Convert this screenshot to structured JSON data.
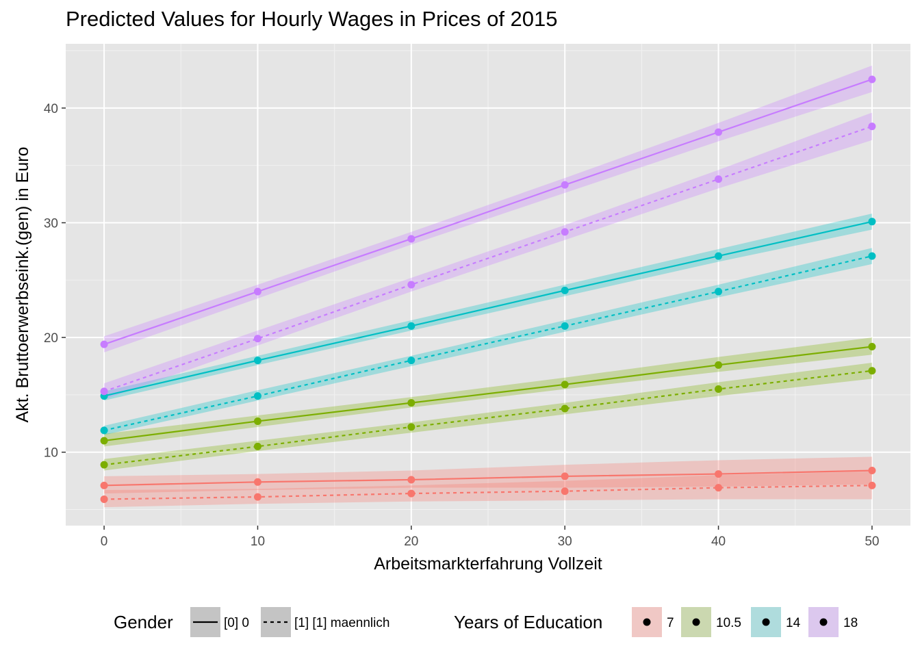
{
  "chart_data": {
    "type": "line",
    "title": "Predicted Values for Hourly Wages in Prices of 2015",
    "xlabel": "Arbeitsmarkterfahrung Vollzeit",
    "ylabel": "Akt. Bruttoerwerbseink.(gen) in Euro",
    "xlim": [
      -2.5,
      52.5
    ],
    "ylim": [
      3.6,
      45.6
    ],
    "x_ticks": [
      0,
      10,
      20,
      30,
      40,
      50
    ],
    "y_ticks": [
      10,
      20,
      30,
      40
    ],
    "x_tick_labels": [
      "0",
      "10",
      "20",
      "30",
      "40",
      "50"
    ],
    "y_tick_labels": [
      "10",
      "20",
      "30",
      "40"
    ],
    "grid": true,
    "legend_placement": "bottom",
    "background": "#e5e5e5",
    "x": [
      0,
      10,
      20,
      30,
      40,
      50
    ],
    "legend": {
      "gender_title": "Gender",
      "gender_items": [
        {
          "label": "[0] 0",
          "linetype": "solid"
        },
        {
          "label": "[1] [1] maennlich",
          "linetype": "dashed"
        }
      ],
      "education_title": "Years of Education",
      "education_items": [
        {
          "label": "7",
          "color": "#f8766d",
          "ribbon": "#f0c8c5"
        },
        {
          "label": "10.5",
          "color": "#7cae00",
          "ribbon": "#cbd8b0"
        },
        {
          "label": "14",
          "color": "#00bfc4",
          "ribbon": "#afdcdd"
        },
        {
          "label": "18",
          "color": "#c77cff",
          "ribbon": "#dcc8ee"
        }
      ]
    },
    "series": [
      {
        "education": "7",
        "gender": "[0] 0",
        "linetype": "solid",
        "color": "#f8766d",
        "ribbon": "#f8766d",
        "values": [
          7.1,
          7.4,
          7.6,
          7.9,
          8.1,
          8.4
        ],
        "lower": [
          6.4,
          6.7,
          6.9,
          6.9,
          7.0,
          7.2
        ],
        "upper": [
          7.9,
          8.1,
          8.4,
          8.9,
          9.3,
          9.6
        ]
      },
      {
        "education": "7",
        "gender": "[1] [1] maennlich",
        "linetype": "dashed",
        "color": "#f8766d",
        "ribbon": "#f8766d",
        "values": [
          5.9,
          6.1,
          6.4,
          6.6,
          6.9,
          7.1
        ],
        "lower": [
          5.2,
          5.5,
          5.7,
          5.8,
          5.9,
          5.9
        ],
        "upper": [
          6.7,
          6.8,
          7.1,
          7.5,
          8.0,
          8.3
        ]
      },
      {
        "education": "10.5",
        "gender": "[0] 0",
        "linetype": "solid",
        "color": "#7cae00",
        "ribbon": "#7cae00",
        "values": [
          11.0,
          12.7,
          14.3,
          15.9,
          17.6,
          19.2
        ],
        "lower": [
          10.5,
          12.2,
          13.9,
          15.5,
          17.0,
          18.5
        ],
        "upper": [
          11.6,
          13.2,
          14.8,
          16.5,
          18.3,
          20.0
        ]
      },
      {
        "education": "10.5",
        "gender": "[1] [1] maennlich",
        "linetype": "dashed",
        "color": "#7cae00",
        "ribbon": "#7cae00",
        "values": [
          8.9,
          10.5,
          12.2,
          13.8,
          15.5,
          17.1
        ],
        "lower": [
          8.4,
          10.1,
          11.7,
          13.3,
          14.9,
          16.4
        ],
        "upper": [
          9.4,
          11.0,
          12.6,
          14.3,
          16.1,
          17.8
        ]
      },
      {
        "education": "14",
        "gender": "[0] 0",
        "linetype": "solid",
        "color": "#00bfc4",
        "ribbon": "#00bfc4",
        "values": [
          14.9,
          18.0,
          21.0,
          24.1,
          27.1,
          30.1
        ],
        "lower": [
          14.5,
          17.6,
          20.6,
          23.6,
          26.6,
          29.4
        ],
        "upper": [
          15.3,
          18.4,
          21.5,
          24.6,
          27.7,
          30.8
        ]
      },
      {
        "education": "14",
        "gender": "[1] [1] maennlich",
        "linetype": "dashed",
        "color": "#00bfc4",
        "ribbon": "#00bfc4",
        "values": [
          11.9,
          14.9,
          18.0,
          21.0,
          24.0,
          27.1
        ],
        "lower": [
          11.5,
          14.5,
          17.5,
          20.5,
          23.5,
          26.4
        ],
        "upper": [
          12.3,
          15.4,
          18.4,
          21.5,
          24.6,
          27.8
        ]
      },
      {
        "education": "18",
        "gender": "[0] 0",
        "linetype": "solid",
        "color": "#c77cff",
        "ribbon": "#c77cff",
        "values": [
          19.4,
          24.0,
          28.6,
          33.3,
          37.9,
          42.5
        ],
        "lower": [
          18.7,
          23.4,
          28.1,
          32.6,
          37.1,
          41.4
        ],
        "upper": [
          20.1,
          24.6,
          29.2,
          33.9,
          38.7,
          43.7
        ]
      },
      {
        "education": "18",
        "gender": "[1] [1] maennlich",
        "linetype": "dashed",
        "color": "#c77cff",
        "ribbon": "#c77cff",
        "values": [
          15.3,
          19.9,
          24.6,
          29.2,
          33.8,
          38.4
        ],
        "lower": [
          14.6,
          19.3,
          24.0,
          28.5,
          33.0,
          37.2
        ],
        "upper": [
          16.0,
          20.6,
          25.2,
          29.8,
          34.6,
          39.6
        ]
      }
    ]
  }
}
